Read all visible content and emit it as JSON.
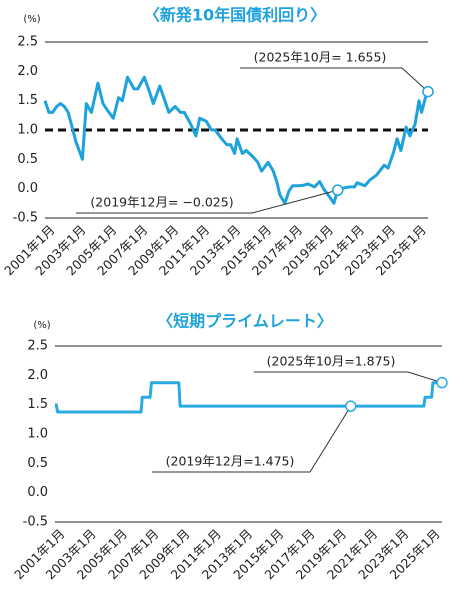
{
  "chart_data": [
    {
      "type": "line",
      "title": "〈新発10年国債利回り〉",
      "unit": "(%)",
      "color": "#1ea2dc",
      "ylim": [
        -0.5,
        2.5
      ],
      "yticks": [
        -0.5,
        {
          "value": 0,
          "label": "0.0"
        },
        0.5,
        {
          "value": 1,
          "label": "1.0"
        },
        1.5,
        {
          "value": 2,
          "label": "2.0"
        },
        2.5
      ],
      "xlim": [
        "2001-01",
        "2025-10"
      ],
      "xticks": [
        {
          "value": "2001-01",
          "label": "2001年1月"
        },
        {
          "value": "2003-01",
          "label": "2003年1月"
        },
        {
          "value": "2005-01",
          "label": "2005年1月"
        },
        {
          "value": "2007-01",
          "label": "2007年1月"
        },
        {
          "value": "2009-01",
          "label": "2009年1月"
        },
        {
          "value": "2011-01",
          "label": "2011年1月"
        },
        {
          "value": "2013-01",
          "label": "2013年1月"
        },
        {
          "value": "2015-01",
          "label": "2015年1月"
        },
        {
          "value": "2017-01",
          "label": "2017年1月"
        },
        {
          "value": "2019-01",
          "label": "2019年1月"
        },
        {
          "value": "2021-01",
          "label": "2021年1月"
        },
        {
          "value": "2023-01",
          "label": "2023年1月"
        },
        {
          "value": "2025-01",
          "label": "2025年1月"
        }
      ],
      "reference_line": 1,
      "x": [
        "2001-01",
        "2001-04",
        "2001-07",
        "2001-10",
        "2002-01",
        "2002-04",
        "2002-07",
        "2002-10",
        "2003-01",
        "2003-06",
        "2003-09",
        "2004-01",
        "2004-06",
        "2004-10",
        "2005-01",
        "2005-06",
        "2005-10",
        "2006-01",
        "2006-05",
        "2006-10",
        "2007-01",
        "2007-06",
        "2007-10",
        "2008-01",
        "2008-06",
        "2008-10",
        "2009-01",
        "2009-06",
        "2009-10",
        "2010-01",
        "2010-06",
        "2010-10",
        "2011-01",
        "2011-06",
        "2011-10",
        "2012-01",
        "2012-06",
        "2012-10",
        "2013-01",
        "2013-04",
        "2013-06",
        "2013-10",
        "2014-01",
        "2014-06",
        "2014-10",
        "2015-01",
        "2015-06",
        "2015-10",
        "2016-01",
        "2016-03",
        "2016-07",
        "2016-10",
        "2017-01",
        "2017-06",
        "2017-10",
        "2018-01",
        "2018-06",
        "2018-10",
        "2019-01",
        "2019-06",
        "2019-09",
        "2019-12",
        "2020-03",
        "2020-06",
        "2020-10",
        "2021-01",
        "2021-03",
        "2021-09",
        "2022-01",
        "2022-06",
        "2022-12",
        "2023-03",
        "2023-07",
        "2023-10",
        "2024-01",
        "2024-05",
        "2024-08",
        "2024-12",
        "2025-03",
        "2025-05",
        "2025-08",
        "2025-10"
      ],
      "values": [
        1.5,
        1.3,
        1.3,
        1.4,
        1.45,
        1.4,
        1.3,
        1.05,
        0.8,
        0.5,
        1.45,
        1.3,
        1.8,
        1.45,
        1.35,
        1.2,
        1.55,
        1.5,
        1.9,
        1.7,
        1.7,
        1.9,
        1.65,
        1.45,
        1.75,
        1.5,
        1.3,
        1.4,
        1.3,
        1.3,
        1.1,
        0.9,
        1.2,
        1.15,
        1.0,
        1.0,
        0.85,
        0.75,
        0.75,
        0.6,
        0.85,
        0.6,
        0.65,
        0.55,
        0.45,
        0.3,
        0.45,
        0.3,
        0.1,
        -0.1,
        -0.25,
        -0.05,
        0.05,
        0.05,
        0.06,
        0.08,
        0.03,
        0.12,
        0.0,
        -0.15,
        -0.25,
        -0.025,
        0.0,
        0.02,
        0.03,
        0.03,
        0.1,
        0.05,
        0.15,
        0.23,
        0.4,
        0.35,
        0.6,
        0.85,
        0.65,
        1.05,
        0.9,
        1.1,
        1.5,
        1.3,
        1.55,
        1.655
      ],
      "annotations": [
        {
          "text": "(2025年10月= 1.655)",
          "x": "2025-10"
        },
        {
          "text": "(2019年12月= −0.025)",
          "x": "2019-12"
        }
      ]
    },
    {
      "type": "line",
      "title": "〈短期プライムレート〉",
      "unit": "(%)",
      "color": "#29abe2",
      "ylim": [
        -0.5,
        2.5
      ],
      "yticks": [
        -0.5,
        {
          "value": 0,
          "label": "0.0"
        },
        0.5,
        {
          "value": 1,
          "label": "1.0"
        },
        1.5,
        {
          "value": 2,
          "label": "2.0"
        },
        2.5
      ],
      "xlim": [
        "2001-01",
        "2025-10"
      ],
      "xticks": [
        {
          "value": "2001-01",
          "label": "2001年1月"
        },
        {
          "value": "2003-01",
          "label": "2003年1月"
        },
        {
          "value": "2005-01",
          "label": "2005年1月"
        },
        {
          "value": "2007-01",
          "label": "2007年1月"
        },
        {
          "value": "2009-01",
          "label": "2009年1月"
        },
        {
          "value": "2011-01",
          "label": "2011年1月"
        },
        {
          "value": "2013-01",
          "label": "2013年1月"
        },
        {
          "value": "2015-01",
          "label": "2015年1月"
        },
        {
          "value": "2017-01",
          "label": "2017年1月"
        },
        {
          "value": "2019-01",
          "label": "2019年1月"
        },
        {
          "value": "2021-01",
          "label": "2021年1月"
        },
        {
          "value": "2023-01",
          "label": "2023年1月"
        },
        {
          "value": "2025-01",
          "label": "2025年1月"
        }
      ],
      "x": [
        "2001-01",
        "2001-02",
        "2001-03",
        "2006-07",
        "2006-08",
        "2007-02",
        "2007-03",
        "2008-12",
        "2009-01",
        "2019-12",
        "2024-08",
        "2024-09",
        "2025-02",
        "2025-03",
        "2025-10"
      ],
      "values": [
        1.5,
        1.5,
        1.375,
        1.375,
        1.625,
        1.625,
        1.875,
        1.875,
        1.475,
        1.475,
        1.475,
        1.625,
        1.625,
        1.875,
        1.875
      ],
      "annotations": [
        {
          "text": "(2025年10月=1.875)",
          "x": "2025-10"
        },
        {
          "text": "(2019年12月=1.475)",
          "x": "2019-12"
        }
      ]
    }
  ]
}
